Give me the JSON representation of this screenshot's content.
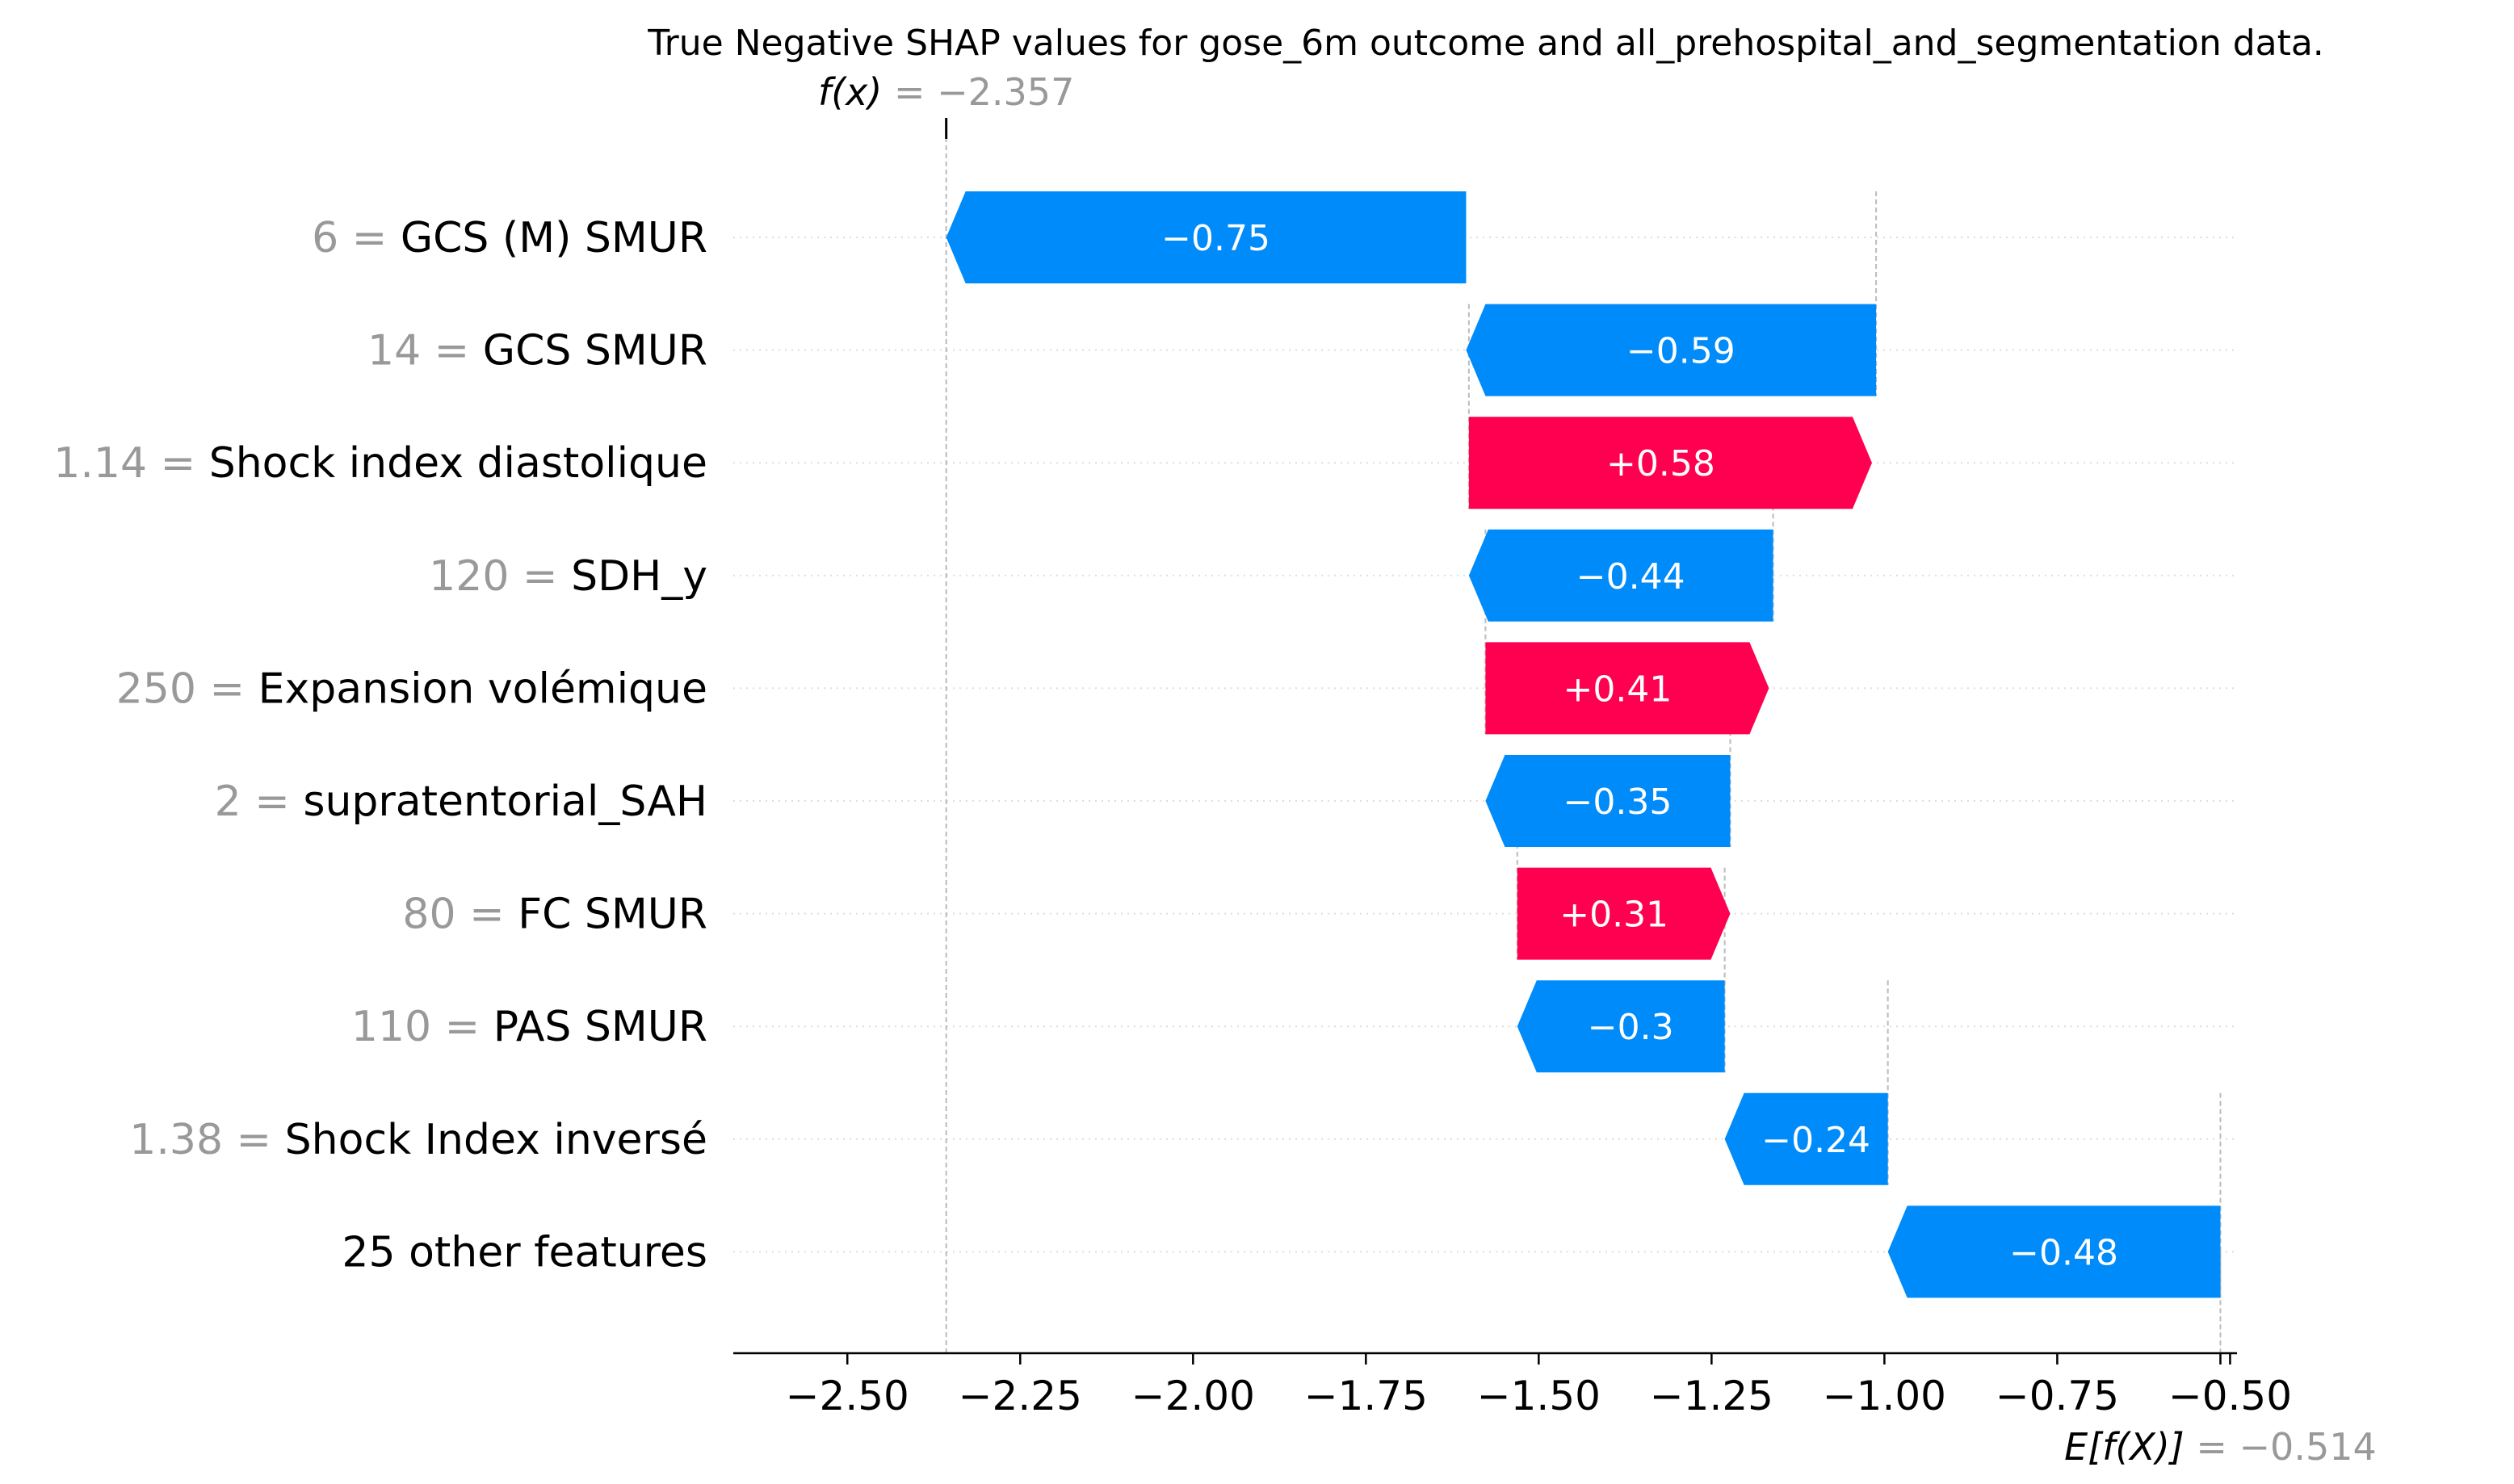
{
  "chart_data": {
    "type": "bar",
    "title": "True Negative SHAP values for gose_6m outcome and all_prehospital_and_segmentation data.",
    "fx": {
      "label": "f(x)",
      "value": "= −2.357",
      "x": -2.357
    },
    "efx": {
      "label": "E[f(X)]",
      "value": "= −0.514",
      "x": -0.514
    },
    "xlim": [
      -2.665,
      -0.49
    ],
    "xticks": [
      {
        "v": -2.5,
        "label": "−2.50"
      },
      {
        "v": -2.25,
        "label": "−2.25"
      },
      {
        "v": -2.0,
        "label": "−2.00"
      },
      {
        "v": -1.75,
        "label": "−1.75"
      },
      {
        "v": -1.5,
        "label": "−1.50"
      },
      {
        "v": -1.25,
        "label": "−1.25"
      },
      {
        "v": -1.0,
        "label": "−1.00"
      },
      {
        "v": -0.75,
        "label": "−0.75"
      },
      {
        "v": -0.5,
        "label": "−0.50"
      }
    ],
    "colors": {
      "negative": "#008bfb",
      "positive": "#ff0051"
    },
    "features": [
      {
        "value": "6 =",
        "name": "GCS (M) SMUR",
        "start": -1.605,
        "end": -2.357,
        "label": "−0.75"
      },
      {
        "value": "14 =",
        "name": "GCS SMUR",
        "start": -1.012,
        "end": -1.605,
        "label": "−0.59"
      },
      {
        "value": "1.14 =",
        "name": "Shock index diastolique",
        "start": -1.601,
        "end": -1.018,
        "label": "+0.58"
      },
      {
        "value": "120 =",
        "name": "SDH_y",
        "start": -1.161,
        "end": -1.601,
        "label": "−0.44"
      },
      {
        "value": "250 =",
        "name": "Expansion volémique",
        "start": -1.577,
        "end": -1.167,
        "label": "+0.41"
      },
      {
        "value": "2 =",
        "name": "supratentorial_SAH",
        "start": -1.223,
        "end": -1.577,
        "label": "−0.35"
      },
      {
        "value": "80 =",
        "name": "FC SMUR",
        "start": -1.531,
        "end": -1.223,
        "label": "+0.31"
      },
      {
        "value": "110 =",
        "name": "PAS  SMUR",
        "start": -1.231,
        "end": -1.531,
        "label": "−0.3"
      },
      {
        "value": "1.38 =",
        "name": "Shock Index inversé",
        "start": -0.995,
        "end": -1.231,
        "label": "−0.24"
      },
      {
        "value": "",
        "name": "25 other features",
        "start": -0.514,
        "end": -0.995,
        "label": "−0.48"
      }
    ]
  }
}
